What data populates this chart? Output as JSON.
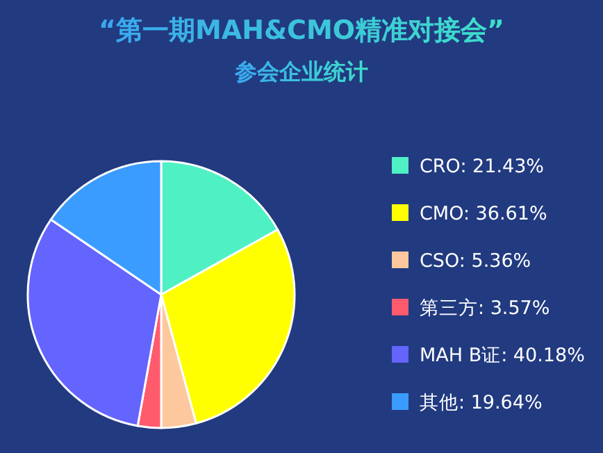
{
  "chart_data": {
    "type": "pie",
    "title": "“第一期MAH&CMO精准对接会”",
    "subtitle": "参会企业统计",
    "categories": [
      "CRO",
      "CMO",
      "CSO",
      "第三方",
      "MAH B证",
      "其他"
    ],
    "values": [
      21.43,
      36.61,
      5.36,
      3.57,
      40.18,
      19.64
    ],
    "value_labels": [
      "21.43%",
      "36.61%",
      "5.36%",
      "3.57%",
      "40.18%",
      "19.64%"
    ],
    "colors": [
      "#4ef0c4",
      "#ffff00",
      "#fdc89e",
      "#ff5b6c",
      "#6464ff",
      "#3a9cff"
    ],
    "legend": "right"
  }
}
